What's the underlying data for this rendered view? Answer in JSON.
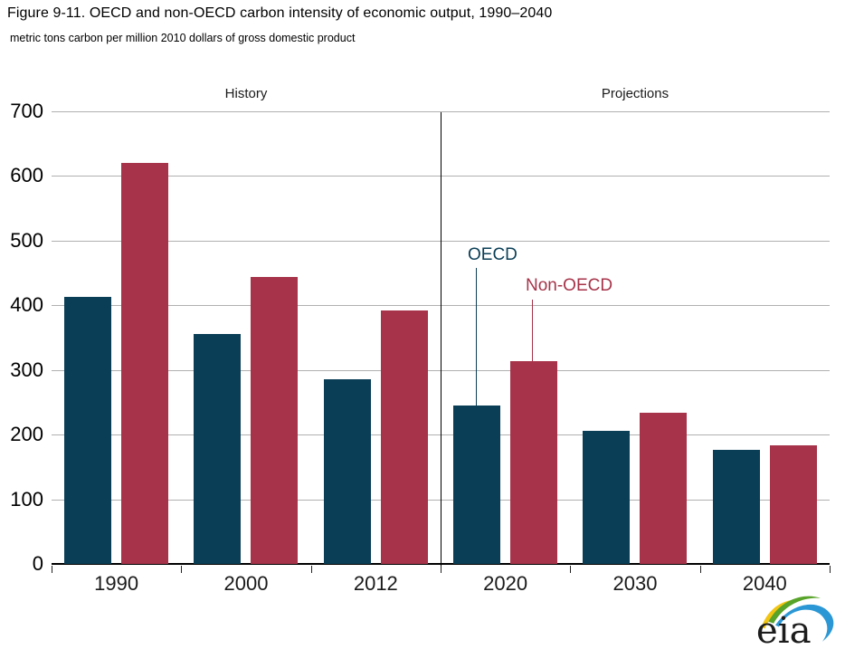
{
  "figure": {
    "title": "Figure 9-11. OECD and non-OECD carbon intensity of economic output, 1990–2040",
    "subtitle": "metric tons carbon per million 2010 dollars of gross domestic product"
  },
  "chart_data": {
    "type": "bar",
    "title": "Figure 9-11. OECD and non-OECD carbon intensity of economic output, 1990–2040",
    "ylabel": "metric tons carbon per million 2010 dollars of gross domestic product",
    "categories": [
      "1990",
      "2000",
      "2012",
      "2020",
      "2030",
      "2040"
    ],
    "series": [
      {
        "name": "OECD",
        "color": "#0a3e56",
        "values": [
          413,
          356,
          286,
          245,
          206,
          177
        ]
      },
      {
        "name": "Non-OECD",
        "color": "#a63349",
        "values": [
          620,
          444,
          392,
          313,
          234,
          184
        ]
      }
    ],
    "ylim": [
      0,
      700
    ],
    "yticks": [
      0,
      100,
      200,
      300,
      400,
      500,
      600,
      700
    ],
    "grid": "horizontal",
    "gridline_color": "#b0b0b0",
    "section_labels": [
      {
        "label": "History",
        "over_categories": [
          "1990",
          "2000",
          "2012"
        ]
      },
      {
        "label": "Projections",
        "over_categories": [
          "2020",
          "2030",
          "2040"
        ]
      }
    ],
    "divider_between": [
      "2012",
      "2020"
    ],
    "annotations": [
      {
        "text": "OECD",
        "color": "#0a3e56",
        "points_to": {
          "category": "2020",
          "series": "OECD"
        }
      },
      {
        "text": "Non-OECD",
        "color": "#a63349",
        "points_to": {
          "category": "2020",
          "series": "Non-OECD"
        }
      }
    ],
    "legend_position": "inline-annotations"
  },
  "logo": {
    "text": "eia"
  }
}
